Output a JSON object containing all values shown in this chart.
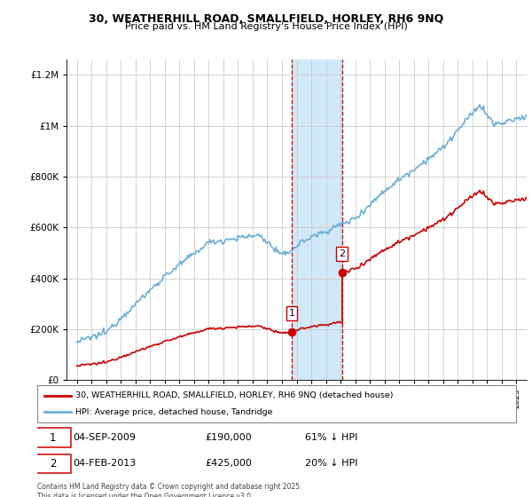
{
  "title_line1": "30, WEATHERHILL ROAD, SMALLFIELD, HORLEY, RH6 9NQ",
  "title_line2": "Price paid vs. HM Land Registry's House Price Index (HPI)",
  "legend_property": "30, WEATHERHILL ROAD, SMALLFIELD, HORLEY, RH6 9NQ (detached house)",
  "legend_hpi": "HPI: Average price, detached house, Tandridge",
  "annotation1_date": "04-SEP-2009",
  "annotation1_price": "£190,000",
  "annotation1_hpi": "61% ↓ HPI",
  "annotation2_date": "04-FEB-2013",
  "annotation2_price": "£425,000",
  "annotation2_hpi": "20% ↓ HPI",
  "footer": "Contains HM Land Registry data © Crown copyright and database right 2025.\nThis data is licensed under the Open Government Licence v3.0.",
  "sale1_year": 2009.67,
  "sale1_price": 190000,
  "sale2_year": 2013.09,
  "sale2_price": 425000,
  "hpi_color": "#6baed6",
  "property_color": "#cc0000",
  "shade_color": "#d0e8f8",
  "annotation_box_color": "#cc0000",
  "ylim_max": 1260000,
  "ylim_min": 0,
  "y_tick_step": 200000
}
